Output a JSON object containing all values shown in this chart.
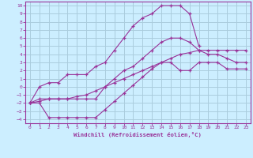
{
  "xlabel": "Windchill (Refroidissement éolien,°C)",
  "bg_color": "#cceeff",
  "grid_color": "#aaccdd",
  "line_color": "#993399",
  "spine_color": "#993399",
  "xlim": [
    -0.5,
    23.5
  ],
  "ylim": [
    -4.5,
    10.5
  ],
  "xticks": [
    0,
    1,
    2,
    3,
    4,
    5,
    6,
    7,
    8,
    9,
    10,
    11,
    12,
    13,
    14,
    15,
    16,
    17,
    18,
    19,
    20,
    21,
    22,
    23
  ],
  "yticks": [
    -4,
    -3,
    -2,
    -1,
    0,
    1,
    2,
    3,
    4,
    5,
    6,
    7,
    8,
    9,
    10
  ],
  "curve1_x": [
    0,
    1,
    2,
    3,
    4,
    5,
    6,
    7,
    8,
    9,
    10,
    11,
    12,
    13,
    14,
    15,
    16,
    17,
    18,
    19,
    20,
    21,
    22,
    23
  ],
  "curve1_y": [
    -2.0,
    -2.0,
    -3.8,
    -3.8,
    -3.8,
    -3.8,
    -3.8,
    -3.8,
    -2.8,
    -1.8,
    -0.8,
    0.2,
    1.2,
    2.2,
    3.0,
    3.0,
    2.0,
    2.0,
    3.0,
    3.0,
    3.0,
    2.2,
    2.2,
    2.2
  ],
  "curve2_x": [
    0,
    1,
    2,
    3,
    4,
    5,
    6,
    7,
    8,
    9,
    10,
    11,
    12,
    13,
    14,
    15,
    16,
    17,
    18,
    19,
    20,
    21,
    22,
    23
  ],
  "curve2_y": [
    -2.0,
    -1.5,
    -1.5,
    -1.5,
    -1.5,
    -1.5,
    -1.5,
    -1.5,
    0.0,
    1.0,
    2.0,
    2.5,
    3.5,
    4.5,
    5.5,
    6.0,
    6.0,
    5.5,
    4.5,
    4.0,
    4.0,
    3.5,
    3.0,
    3.0
  ],
  "curve3_x": [
    0,
    1,
    2,
    3,
    4,
    5,
    6,
    7,
    8,
    9,
    10,
    11,
    12,
    13,
    14,
    15,
    16,
    17,
    18
  ],
  "curve3_y": [
    -2.0,
    0.0,
    0.5,
    0.5,
    1.5,
    1.5,
    1.5,
    2.5,
    3.0,
    4.5,
    6.0,
    7.5,
    8.5,
    9.0,
    10.0,
    10.0,
    10.0,
    9.0,
    5.0
  ],
  "curve4_x": [
    0,
    1,
    2,
    3,
    4,
    5,
    6,
    7,
    8,
    9,
    10,
    11,
    12,
    13,
    14,
    15,
    16,
    17,
    18,
    19,
    20,
    21,
    22,
    23
  ],
  "curve4_y": [
    -2.0,
    -1.8,
    -1.5,
    -1.5,
    -1.5,
    -1.2,
    -1.0,
    -0.5,
    0.0,
    0.5,
    1.0,
    1.5,
    2.0,
    2.5,
    3.0,
    3.5,
    4.0,
    4.2,
    4.5,
    4.5,
    4.5,
    4.5,
    4.5,
    4.5
  ]
}
